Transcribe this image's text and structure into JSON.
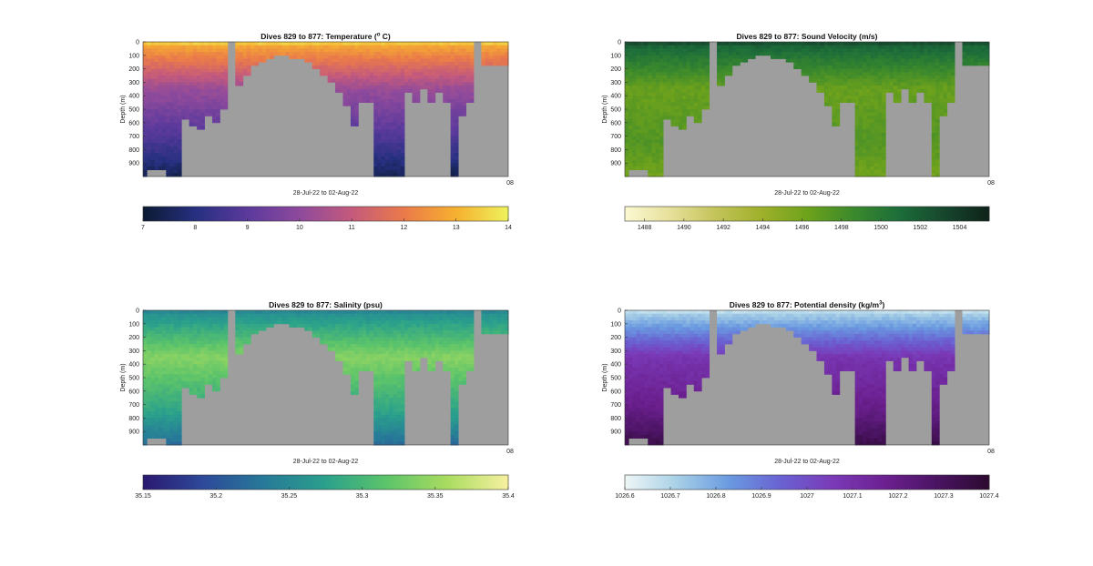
{
  "figure": {
    "background": "#ffffff",
    "mask_color": "#9e9e9e"
  },
  "chart_data": [
    {
      "type": "heatmap",
      "title": "Dives 829 to 877: Temperature (",
      "title_sup": "o",
      "title_tail": " C)",
      "xlabel": "28-Jul-22 to 02-Aug-22",
      "ylabel": "Depth (m)",
      "y_ticks": [
        "0",
        "100",
        "200",
        "300",
        "400",
        "500",
        "600",
        "700",
        "800",
        "900"
      ],
      "ylim": [
        0,
        1000
      ],
      "corner_label": "08",
      "colorbar": {
        "ticks": [
          "7",
          "8",
          "9",
          "10",
          "11",
          "12",
          "13",
          "14"
        ],
        "range": [
          7,
          14
        ],
        "colors": [
          "#0b1a32",
          "#263080",
          "#5b3a9c",
          "#8e4a9c",
          "#c45a7c",
          "#ea7a4a",
          "#f6b030",
          "#eef25c"
        ]
      },
      "profile": {
        "surface": 12.8,
        "mid": 10.2,
        "deep": 8.6,
        "bottom": 7.4,
        "surface_warm": 13.8
      }
    },
    {
      "type": "heatmap",
      "title": "Dives 829 to 877: Sound Velocity (m/s)",
      "title_sup": "",
      "title_tail": "",
      "xlabel": "28-Jul-22 to 02-Aug-22",
      "ylabel": "Depth (m)",
      "y_ticks": [
        "0",
        "100",
        "200",
        "300",
        "400",
        "500",
        "600",
        "700",
        "800",
        "900"
      ],
      "ylim": [
        0,
        1000
      ],
      "corner_label": "08",
      "colorbar": {
        "ticks": [
          "1488",
          "1490",
          "1492",
          "1494",
          "1496",
          "1498",
          "1500",
          "1502",
          "1504"
        ],
        "range": [
          1487,
          1505.5
        ],
        "colors": [
          "#fbf8d2",
          "#e6e09a",
          "#c3c35a",
          "#9eb02a",
          "#6ea21c",
          "#3c8a2c",
          "#1d6e3a",
          "#17472e",
          "#0e221a"
        ]
      },
      "profile": {
        "surface": 1501.5,
        "mid": 1496.5,
        "deep": 1497.5,
        "bottom": 1496.0,
        "surface_warm": 1503.5
      }
    },
    {
      "type": "heatmap",
      "title": "Dives 829 to 877: Salinity (psu)",
      "title_sup": "",
      "title_tail": "",
      "xlabel": "28-Jul-22 to 02-Aug-22",
      "ylabel": "Depth (m)",
      "y_ticks": [
        "0",
        "100",
        "200",
        "300",
        "400",
        "500",
        "600",
        "700",
        "800",
        "900"
      ],
      "ylim": [
        0,
        1000
      ],
      "corner_label": "08",
      "colorbar": {
        "ticks": [
          "35.15",
          "35.2",
          "35.25",
          "35.3",
          "35.35",
          "35.4"
        ],
        "range": [
          35.15,
          35.4
        ],
        "colors": [
          "#2a1870",
          "#2e4a9a",
          "#277a98",
          "#2aa08c",
          "#5cc46a",
          "#aadc60",
          "#f7f0a0"
        ]
      },
      "profile": {
        "surface": 35.26,
        "mid": 35.34,
        "deep": 35.28,
        "bottom": 35.22,
        "surface_warm": 35.24
      }
    },
    {
      "type": "heatmap",
      "title": "Dives 829 to 877: Potential density (kg/m",
      "title_sup": "3",
      "title_tail": ")",
      "xlabel": "28-Jul-22 to 02-Aug-22",
      "ylabel": "Depth (m)",
      "y_ticks": [
        "0",
        "100",
        "200",
        "300",
        "400",
        "500",
        "600",
        "700",
        "800",
        "900"
      ],
      "ylim": [
        0,
        1000
      ],
      "corner_label": "08",
      "colorbar": {
        "ticks": [
          "1026.6",
          "1026.7",
          "1026.8",
          "1026.9",
          "1027",
          "1027.1",
          "1027.2",
          "1027.3",
          "1027.4"
        ],
        "range": [
          1026.6,
          1027.4
        ],
        "colors": [
          "#eef6f6",
          "#a8d0e6",
          "#6a9ae0",
          "#6a62d2",
          "#7a3ab8",
          "#6c2090",
          "#4a1462",
          "#2c0a30"
        ]
      },
      "profile": {
        "surface": 1026.72,
        "mid": 1027.08,
        "deep": 1027.2,
        "bottom": 1027.34,
        "surface_warm": 1026.65
      }
    }
  ],
  "section": {
    "columns": 95,
    "bottom_depth_m": [
      1000,
      1000,
      1000,
      1000,
      1000,
      1000,
      1000,
      1000,
      1000,
      1000,
      570,
      570,
      620,
      620,
      660,
      660,
      540,
      540,
      600,
      600,
      510,
      510,
      0,
      0,
      320,
      320,
      240,
      240,
      180,
      180,
      140,
      140,
      120,
      120,
      110,
      110,
      110,
      110,
      120,
      120,
      130,
      130,
      150,
      150,
      190,
      190,
      240,
      240,
      300,
      300,
      370,
      370,
      470,
      470,
      620,
      620,
      450,
      450,
      450,
      450,
      1000,
      1000,
      1000,
      1000,
      1000,
      1000,
      1000,
      1000,
      370,
      370,
      440,
      440,
      360,
      360,
      440,
      440,
      380,
      380,
      450,
      450,
      1000,
      1000,
      560,
      560,
      460,
      460,
      0,
      0,
      180,
      180,
      180,
      180,
      180,
      180,
      180
    ],
    "deep_left_cutoff_m": [
      1000,
      960,
      960,
      960,
      960,
      960
    ]
  }
}
